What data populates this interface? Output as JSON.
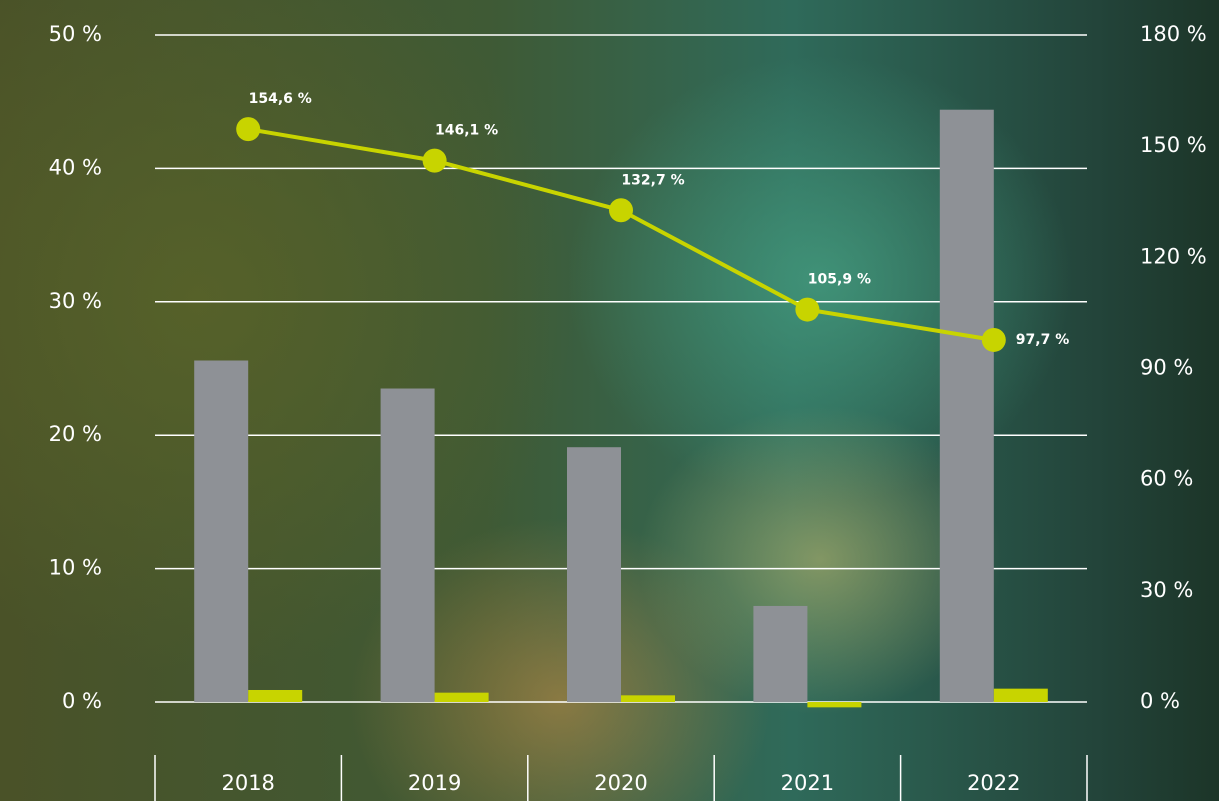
{
  "chart_data": {
    "type": "bar",
    "categories": [
      "2018",
      "2019",
      "2020",
      "2021",
      "2022"
    ],
    "ylim": [
      0,
      50
    ],
    "yticks": [
      {
        "value": 0,
        "label": "0 %"
      },
      {
        "value": 10,
        "label": "10 %"
      },
      {
        "value": 20,
        "label": "20 %"
      },
      {
        "value": 30,
        "label": "30 %"
      },
      {
        "value": 40,
        "label": "40 %"
      },
      {
        "value": 50,
        "label": "50 %"
      }
    ],
    "y2lim": [
      0,
      180
    ],
    "y2ticks": [
      {
        "value": 0,
        "label": "0 %"
      },
      {
        "value": 30,
        "label": "30 %"
      },
      {
        "value": 60,
        "label": "60 %"
      },
      {
        "value": 90,
        "label": "90 %"
      },
      {
        "value": 120,
        "label": "120 %"
      },
      {
        "value": 150,
        "label": "150 %"
      },
      {
        "value": 180,
        "label": "180 %"
      }
    ],
    "grid": true,
    "series": [
      {
        "type": "bar",
        "color": "#8e9196",
        "values": [
          25.6,
          23.5,
          19.1,
          7.2,
          44.4
        ]
      },
      {
        "type": "bar",
        "color": "#c8d400",
        "values": [
          0.9,
          0.7,
          0.5,
          -0.4,
          1.0
        ]
      },
      {
        "type": "line",
        "axis": "y2",
        "color": "#c8d400",
        "values": [
          154.6,
          146.1,
          132.7,
          105.9,
          97.7
        ],
        "value_labels": [
          "154,6 %",
          "146,1 %",
          "132,7 %",
          "105,9 %",
          "97,7 %"
        ]
      }
    ]
  }
}
